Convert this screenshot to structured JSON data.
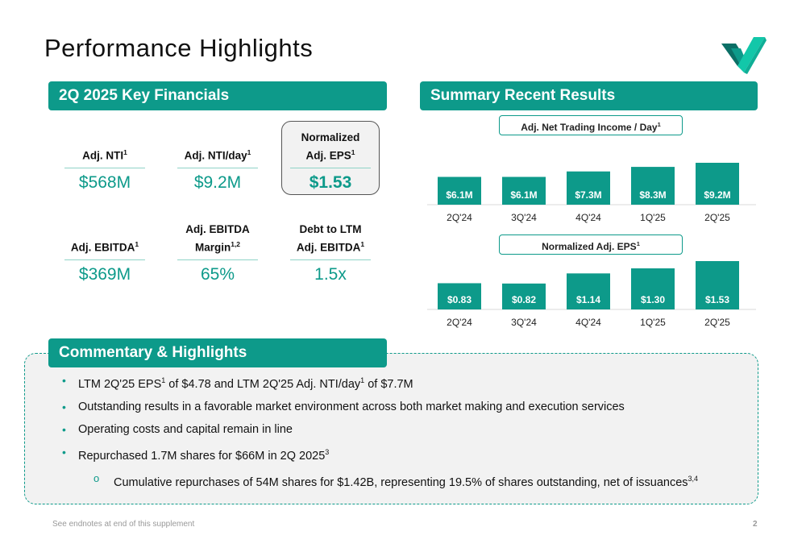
{
  "page": {
    "title": "Performance Highlights",
    "footnote": "See endnotes at end of this supplement",
    "page_number": "2",
    "accent_color": "#0d9a8a"
  },
  "key_financials": {
    "header": "2Q 2025 Key Financials",
    "metrics": [
      {
        "label_lines": [
          "Adj. NTI"
        ],
        "sup": "1",
        "value": "$568M"
      },
      {
        "label_lines": [
          "Adj. NTI/day"
        ],
        "sup": "1",
        "value": "$9.2M"
      },
      {
        "label_lines": [
          "Normalized",
          "Adj. EPS"
        ],
        "sup": "1",
        "value": "$1.53",
        "highlighted": true
      },
      {
        "label_lines": [
          "Adj. EBITDA"
        ],
        "sup": "1",
        "value": "$369M"
      },
      {
        "label_lines": [
          "Adj. EBITDA",
          "Margin"
        ],
        "sup": "1,2",
        "value": "65%"
      },
      {
        "label_lines": [
          "Debt to LTM",
          "Adj. EBITDA"
        ],
        "sup": "1",
        "value": "1.5x"
      }
    ]
  },
  "summary": {
    "header": "Summary Recent Results"
  },
  "chart_data": [
    {
      "type": "bar",
      "title": "Adj. Net Trading Income / Day",
      "title_sup": "1",
      "categories": [
        "2Q'24",
        "3Q'24",
        "4Q'24",
        "1Q'25",
        "2Q'25"
      ],
      "values": [
        6.1,
        6.1,
        7.3,
        8.3,
        9.2
      ],
      "data_labels": [
        "$6.1M",
        "$6.1M",
        "$7.3M",
        "$8.3M",
        "$9.2M"
      ],
      "color": "#0d9a8a"
    },
    {
      "type": "bar",
      "title": "Normalized Adj. EPS",
      "title_sup": "1",
      "categories": [
        "2Q'24",
        "3Q'24",
        "4Q'24",
        "1Q'25",
        "2Q'25"
      ],
      "values": [
        0.83,
        0.82,
        1.14,
        1.3,
        1.53
      ],
      "data_labels": [
        "$0.83",
        "$0.82",
        "$1.14",
        "$1.30",
        "$1.53"
      ],
      "color": "#0d9a8a"
    }
  ],
  "commentary": {
    "header": "Commentary & Highlights",
    "bullets": [
      {
        "level": 1,
        "parts": [
          [
            "LTM 2Q'25 EPS",
            ""
          ],
          [
            "1",
            "sup"
          ],
          [
            " of $4.78 and LTM 2Q'25 Adj. NTI/day",
            ""
          ],
          [
            "1",
            "sup"
          ],
          [
            " of $7.7M",
            ""
          ]
        ]
      },
      {
        "level": 1,
        "parts": [
          [
            "Outstanding results in a favorable market environment across both market making and execution services",
            ""
          ]
        ]
      },
      {
        "level": 1,
        "parts": [
          [
            "Operating costs and capital remain in line",
            ""
          ]
        ]
      },
      {
        "level": 1,
        "parts": [
          [
            "Repurchased 1.7M shares for $66M in 2Q 2025",
            ""
          ],
          [
            "3",
            "sup"
          ]
        ]
      },
      {
        "level": 2,
        "parts": [
          [
            "Cumulative repurchases of 54M shares for $1.42B, representing 19.5% of shares outstanding, net of issuances",
            ""
          ],
          [
            "3,4",
            "sup"
          ]
        ]
      }
    ]
  }
}
